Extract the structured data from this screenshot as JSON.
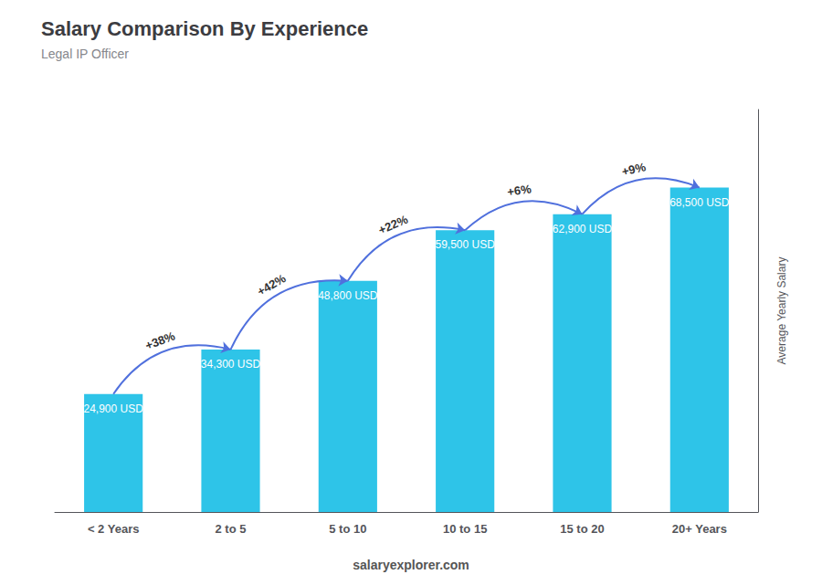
{
  "chart_data": {
    "type": "bar",
    "title": "Salary Comparison By Experience",
    "subtitle": "Legal IP Officer",
    "ylabel": "Average Yearly Salary",
    "categories": [
      "< 2 Years",
      "2 to 5",
      "5 to 10",
      "10 to 15",
      "15 to 20",
      "20+ Years"
    ],
    "values": [
      24900,
      34300,
      48800,
      59500,
      62900,
      68500
    ],
    "value_labels": [
      "24,900 USD",
      "34,300 USD",
      "48,800 USD",
      "59,500 USD",
      "62,900 USD",
      "68,500 USD"
    ],
    "data_labels": true,
    "annotations": [
      "+38%",
      "+42%",
      "+22%",
      "+6%",
      "+9%"
    ],
    "footer": "salaryexplorer.com",
    "color": "#2ec4e8",
    "ylim": [
      0,
      85000
    ],
    "yticks": [],
    "grid": false,
    "tick_labels": "x"
  }
}
